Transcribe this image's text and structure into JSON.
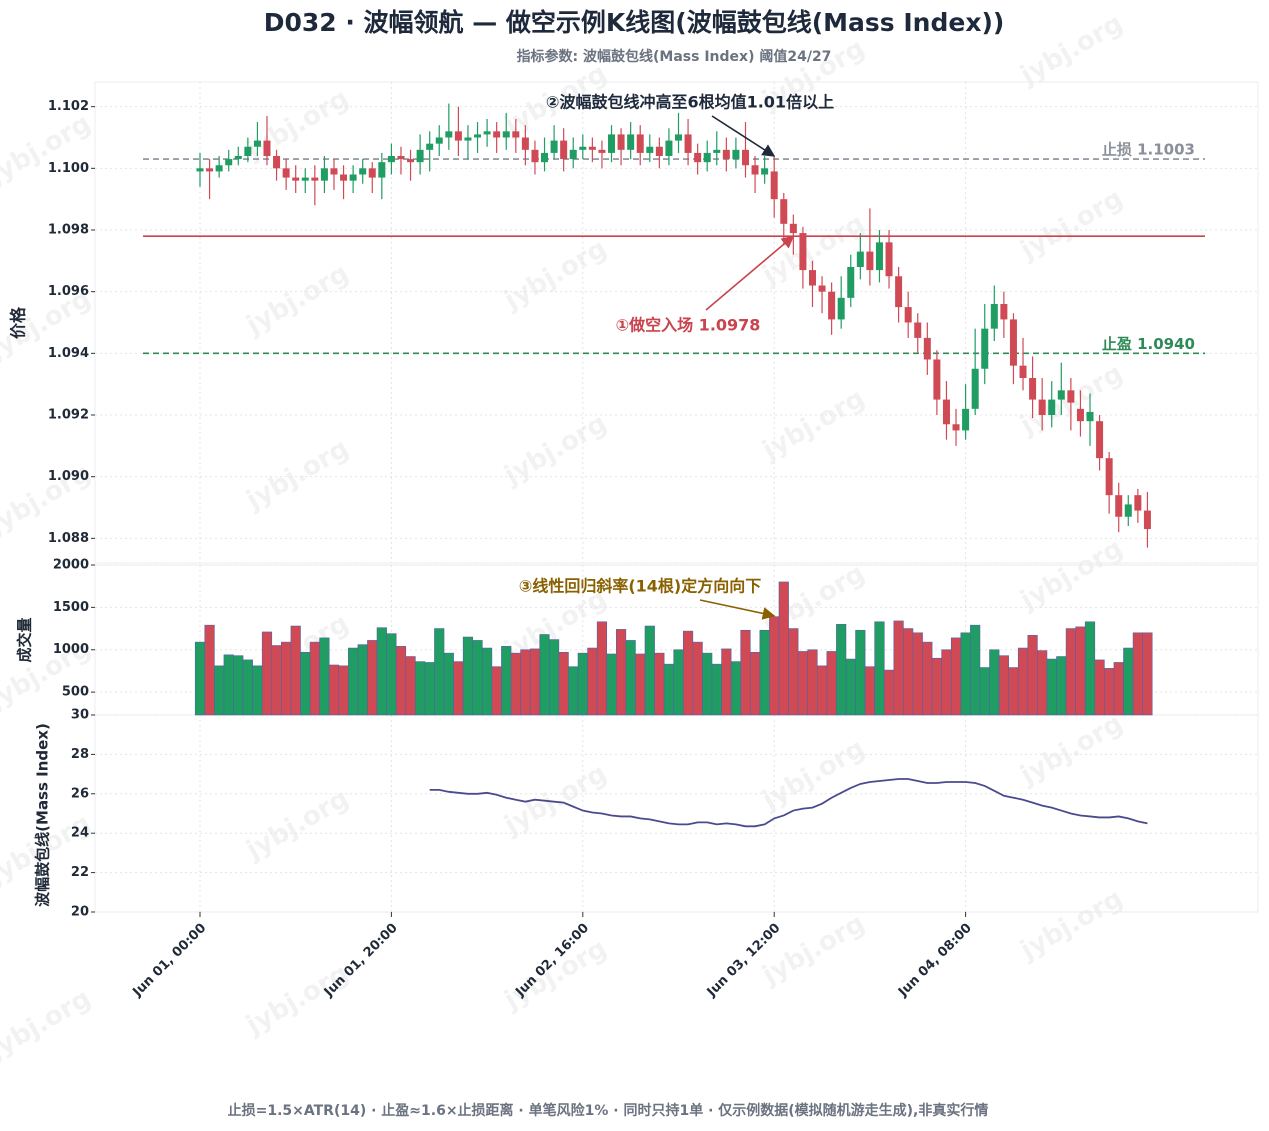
{
  "chart_data": [
    {
      "type": "candlestick",
      "title": "D032 · 波幅领航 — 做空示例K线图(波幅鼓包线(Mass Index))",
      "subtitle": "指标参数: 波幅鼓包线(Mass Index) 阈值24/27",
      "footnote": "止损=1.5×ATR(14) · 止盈≈1.6×止损距离 · 单笔风险1% · 同时只持1单 · 仅示例数据(模拟随机游走生成),非真实行情",
      "watermark": "jybj.org",
      "y_label": "价格",
      "up_color": "#1f9d63",
      "down_color": "#d04a55",
      "x": [
        "Jun 01, 00:00",
        "Jun 01, 01:00",
        "Jun 01, 02:00",
        "Jun 01, 03:00",
        "Jun 01, 04:00",
        "Jun 01, 05:00",
        "Jun 01, 06:00",
        "Jun 01, 07:00",
        "Jun 01, 08:00",
        "Jun 01, 09:00",
        "Jun 01, 10:00",
        "Jun 01, 11:00",
        "Jun 01, 12:00",
        "Jun 01, 13:00",
        "Jun 01, 14:00",
        "Jun 01, 15:00",
        "Jun 01, 16:00",
        "Jun 01, 17:00",
        "Jun 01, 18:00",
        "Jun 01, 19:00",
        "Jun 01, 20:00",
        "Jun 01, 21:00",
        "Jun 01, 22:00",
        "Jun 01, 23:00",
        "Jun 02, 00:00",
        "Jun 02, 01:00",
        "Jun 02, 02:00",
        "Jun 02, 03:00",
        "Jun 02, 04:00",
        "Jun 02, 05:00",
        "Jun 02, 06:00",
        "Jun 02, 07:00",
        "Jun 02, 08:00",
        "Jun 02, 09:00",
        "Jun 02, 10:00",
        "Jun 02, 11:00",
        "Jun 02, 12:00",
        "Jun 02, 13:00",
        "Jun 02, 14:00",
        "Jun 02, 15:00",
        "Jun 02, 16:00",
        "Jun 02, 17:00",
        "Jun 02, 18:00",
        "Jun 02, 19:00",
        "Jun 02, 20:00",
        "Jun 02, 21:00",
        "Jun 02, 22:00",
        "Jun 02, 23:00",
        "Jun 03, 00:00",
        "Jun 03, 01:00",
        "Jun 03, 02:00",
        "Jun 03, 03:00",
        "Jun 03, 04:00",
        "Jun 03, 05:00",
        "Jun 03, 06:00",
        "Jun 03, 07:00",
        "Jun 03, 08:00",
        "Jun 03, 09:00",
        "Jun 03, 10:00",
        "Jun 03, 11:00",
        "Jun 03, 12:00",
        "Jun 03, 13:00",
        "Jun 03, 14:00",
        "Jun 03, 15:00",
        "Jun 03, 16:00",
        "Jun 03, 17:00",
        "Jun 03, 18:00",
        "Jun 03, 19:00",
        "Jun 03, 20:00",
        "Jun 03, 21:00",
        "Jun 03, 22:00",
        "Jun 03, 23:00",
        "Jun 04, 00:00",
        "Jun 04, 01:00",
        "Jun 04, 02:00",
        "Jun 04, 03:00",
        "Jun 04, 04:00",
        "Jun 04, 05:00",
        "Jun 04, 06:00",
        "Jun 04, 07:00",
        "Jun 04, 08:00",
        "Jun 04, 09:00",
        "Jun 04, 10:00",
        "Jun 04, 11:00",
        "Jun 04, 12:00",
        "Jun 04, 13:00",
        "Jun 04, 14:00",
        "Jun 04, 15:00",
        "Jun 04, 16:00",
        "Jun 04, 17:00",
        "Jun 04, 18:00",
        "Jun 04, 19:00",
        "Jun 04, 20:00",
        "Jun 04, 21:00",
        "Jun 04, 22:00",
        "Jun 04, 23:00",
        "Jun 05, 00:00",
        "Jun 05, 01:00",
        "Jun 05, 02:00",
        "Jun 05, 03:00"
      ],
      "xticks": [
        "Jun 01, 00:00",
        "Jun 01, 20:00",
        "Jun 02, 16:00",
        "Jun 03, 12:00",
        "Jun 04, 08:00"
      ],
      "open": [
        1.0999,
        1.1,
        1.0999,
        1.1001,
        1.1003,
        1.1004,
        1.1007,
        1.1009,
        1.1004,
        1.1,
        1.0997,
        1.0996,
        1.0997,
        1.0996,
        1.1,
        1.0998,
        1.0996,
        1.0998,
        1.1,
        1.0997,
        1.1002,
        1.1004,
        1.1003,
        1.1002,
        1.1006,
        1.1008,
        1.101,
        1.1012,
        1.1009,
        1.101,
        1.1011,
        1.1012,
        1.101,
        1.1012,
        1.101,
        1.1006,
        1.1002,
        1.1005,
        1.1009,
        1.1003,
        1.1006,
        1.1007,
        1.1006,
        1.1005,
        1.1011,
        1.1006,
        1.1011,
        1.1005,
        1.1007,
        1.1004,
        1.1009,
        1.1011,
        1.1005,
        1.1002,
        1.1005,
        1.1006,
        1.1003,
        1.1006,
        1.1001,
        1.0998,
        1.0999,
        1.099,
        1.0982,
        1.0979,
        1.0967,
        1.0962,
        1.096,
        1.0951,
        1.0958,
        1.0968,
        1.0973,
        1.0967,
        1.0976,
        1.0965,
        1.0955,
        1.095,
        1.0945,
        1.0938,
        1.0925,
        1.0917,
        1.0915,
        1.0922,
        1.0935,
        1.0948,
        1.0956,
        1.0951,
        1.0936,
        1.0932,
        1.0925,
        1.092,
        1.0925,
        1.0928,
        1.0922,
        1.0918,
        1.0918,
        1.0906,
        1.0894,
        1.0887,
        1.0894,
        1.0889
      ],
      "high": [
        1.1005,
        1.1003,
        1.1004,
        1.1006,
        1.1007,
        1.101,
        1.1015,
        1.1017,
        1.1006,
        1.1003,
        1.1001,
        1.1,
        1.1001,
        1.1004,
        1.1003,
        1.1001,
        1.1001,
        1.1003,
        1.1002,
        1.1005,
        1.1008,
        1.1007,
        1.1006,
        1.1011,
        1.1012,
        1.1014,
        1.1021,
        1.102,
        1.1014,
        1.1015,
        1.1016,
        1.1015,
        1.1018,
        1.1016,
        1.1014,
        1.1009,
        1.101,
        1.1014,
        1.1013,
        1.101,
        1.1011,
        1.101,
        1.1009,
        1.1014,
        1.1013,
        1.1015,
        1.1014,
        1.1011,
        1.101,
        1.1013,
        1.1018,
        1.1016,
        1.1008,
        1.1009,
        1.1012,
        1.101,
        1.101,
        1.1015,
        1.1004,
        1.1004,
        1.1004,
        1.0992,
        1.0985,
        1.0981,
        1.097,
        1.0965,
        1.0963,
        1.0965,
        1.0972,
        1.0979,
        1.0987,
        1.098,
        1.098,
        1.0968,
        1.096,
        1.0953,
        1.095,
        1.0941,
        1.0931,
        1.0922,
        1.093,
        1.0948,
        1.0956,
        1.0962,
        1.096,
        1.0953,
        1.0945,
        1.0939,
        1.0932,
        1.0931,
        1.0937,
        1.0932,
        1.0928,
        1.0927,
        1.092,
        1.0908,
        1.0898,
        1.0894,
        1.0896,
        1.0895
      ],
      "low": [
        1.0994,
        1.099,
        1.0997,
        1.0999,
        1.1001,
        1.1002,
        1.1004,
        1.1001,
        1.0996,
        1.0993,
        1.0992,
        1.0992,
        1.0988,
        1.0992,
        1.0993,
        1.099,
        1.0992,
        1.0995,
        1.0992,
        1.099,
        1.0998,
        1.0998,
        1.0996,
        1.0998,
        1.0999,
        1.1004,
        1.1006,
        1.1004,
        1.1003,
        1.1005,
        1.1007,
        1.1005,
        1.1006,
        1.1005,
        1.1001,
        1.0998,
        1.0999,
        1.1003,
        1.0999,
        1.1,
        1.1003,
        1.1002,
        1.1,
        1.1002,
        1.1001,
        1.1003,
        1.1001,
        1.1002,
        1.1,
        1.1001,
        1.1005,
        1.1001,
        1.0998,
        1.0999,
        1.1001,
        1.0999,
        1.1,
        1.0997,
        1.0992,
        1.0995,
        1.0984,
        1.0975,
        1.0972,
        1.0961,
        1.0955,
        1.0953,
        1.0946,
        1.0948,
        1.0955,
        1.0964,
        1.0962,
        1.0963,
        1.0961,
        1.095,
        1.0945,
        1.094,
        1.0933,
        1.092,
        1.0912,
        1.091,
        1.0912,
        1.092,
        1.093,
        1.0944,
        1.0945,
        1.093,
        1.0928,
        1.0919,
        1.0915,
        1.0916,
        1.092,
        1.0915,
        1.0913,
        1.091,
        1.0902,
        1.0888,
        1.0882,
        1.0884,
        1.0885,
        1.0877
      ],
      "close": [
        1.1,
        1.0999,
        1.1001,
        1.1003,
        1.1004,
        1.1007,
        1.1009,
        1.1004,
        1.1,
        1.0997,
        1.0996,
        1.0997,
        1.0996,
        1.1,
        1.0998,
        1.0996,
        1.0998,
        1.1,
        1.0997,
        1.1002,
        1.1004,
        1.1003,
        1.1002,
        1.1006,
        1.1008,
        1.101,
        1.1012,
        1.1009,
        1.101,
        1.1011,
        1.1012,
        1.101,
        1.1012,
        1.101,
        1.1006,
        1.1002,
        1.1005,
        1.1009,
        1.1003,
        1.1006,
        1.1007,
        1.1006,
        1.1005,
        1.1011,
        1.1006,
        1.1011,
        1.1005,
        1.1007,
        1.1004,
        1.1009,
        1.1011,
        1.1005,
        1.1002,
        1.1005,
        1.1006,
        1.1003,
        1.1006,
        1.1001,
        1.0998,
        1.1,
        1.099,
        1.0982,
        1.0979,
        1.0967,
        1.0962,
        1.096,
        1.0951,
        1.0958,
        1.0968,
        1.0973,
        1.0967,
        1.0976,
        1.0965,
        1.0955,
        1.095,
        1.0945,
        1.0938,
        1.0925,
        1.0917,
        1.0915,
        1.0922,
        1.0935,
        1.0948,
        1.0956,
        1.0951,
        1.0936,
        1.0932,
        1.0925,
        1.092,
        1.0925,
        1.0928,
        1.0924,
        1.0918,
        1.0921,
        1.0906,
        1.0894,
        1.0887,
        1.0891,
        1.0889,
        1.0883
      ],
      "ylim": [
        1.0872,
        1.1028
      ],
      "yticks": [
        1.088,
        {
          "value": 1.09,
          "label": "1.090"
        },
        1.092,
        1.094,
        1.096,
        1.098,
        {
          "value": 1.1,
          "label": "1.100"
        },
        1.102
      ],
      "grid": true,
      "hlines": [
        {
          "value": 1.1003,
          "label": "止损 1.1003",
          "color": "#8a8f99",
          "style": "dashed"
        },
        {
          "value": 1.0978,
          "color": "#c9444d",
          "style": "solid"
        },
        {
          "value": 1.094,
          "label": "止盈 1.0940",
          "color": "#2e8b57",
          "style": "dashed"
        }
      ],
      "annotations": [
        {
          "text": "②波幅鼓包线冲高至6根均值1.01倍以上",
          "x": "Jun 03, 12:00",
          "y": 1.1004,
          "color": "#1e293b"
        },
        {
          "text": "①做空入场 1.0978",
          "x": "Jun 03, 14:00",
          "y": 1.0978,
          "color": "#c9444d"
        }
      ]
    },
    {
      "type": "bar",
      "y_label": "成交量",
      "edge_color": "#5561a8",
      "values": [
        1090,
        1290,
        810,
        940,
        930,
        880,
        810,
        1210,
        1050,
        1090,
        1280,
        970,
        1090,
        1140,
        820,
        810,
        1020,
        1060,
        1110,
        1260,
        1190,
        1040,
        920,
        860,
        850,
        1250,
        960,
        860,
        1150,
        1110,
        1020,
        800,
        1040,
        960,
        1000,
        1010,
        1180,
        1120,
        970,
        800,
        960,
        1020,
        1330,
        950,
        1240,
        1110,
        950,
        1280,
        960,
        830,
        1000,
        1220,
        1090,
        960,
        830,
        1010,
        860,
        1230,
        970,
        1230,
        1390,
        1800,
        1250,
        980,
        1000,
        810,
        980,
        1300,
        890,
        1230,
        800,
        1330,
        760,
        1340,
        1250,
        1200,
        1090,
        900,
        1000,
        1140,
        1200,
        1290,
        790,
        1000,
        930,
        790,
        1020,
        1170,
        990,
        890,
        920,
        1250,
        1270,
        1330,
        880,
        780,
        850,
        1020,
        1200,
        1200
      ],
      "ylim": [
        230,
        2000
      ],
      "yticks": [
        500,
        1000,
        1500,
        2000
      ],
      "grid": true,
      "annotations": [
        {
          "text": "③线性回归斜率(14根)定方向向下",
          "x": "Jun 03, 12:00",
          "y": 1400,
          "color": "#8a6100"
        }
      ]
    },
    {
      "type": "line",
      "y_label": "波幅鼓包线(Mass Index)",
      "color": "#4b4a8f",
      "values": [
        null,
        null,
        null,
        null,
        null,
        null,
        null,
        null,
        null,
        null,
        null,
        null,
        null,
        null,
        null,
        null,
        null,
        null,
        null,
        null,
        null,
        null,
        null,
        null,
        26.2,
        26.2,
        26.1,
        26.05,
        26.0,
        26.0,
        26.05,
        25.95,
        25.8,
        25.7,
        25.6,
        25.7,
        25.65,
        25.6,
        25.55,
        25.35,
        25.15,
        25.05,
        25.0,
        24.9,
        24.85,
        24.85,
        24.75,
        24.7,
        24.6,
        24.5,
        24.45,
        24.45,
        24.55,
        24.55,
        24.45,
        24.5,
        24.45,
        24.35,
        24.35,
        24.45,
        24.75,
        24.9,
        25.15,
        25.25,
        25.3,
        25.5,
        25.8,
        26.05,
        26.3,
        26.5,
        26.6,
        26.65,
        26.7,
        26.75,
        26.75,
        26.65,
        26.55,
        26.55,
        26.6,
        26.6,
        26.6,
        26.55,
        26.4,
        26.15,
        25.9,
        25.8,
        25.7,
        25.55,
        25.4,
        25.3,
        25.15,
        25.0,
        24.9,
        24.85,
        24.8,
        24.8,
        24.85,
        24.75,
        24.6,
        24.5
      ],
      "ylim": [
        20,
        30
      ],
      "yticks": [
        20,
        22,
        24,
        26,
        28,
        30
      ],
      "grid": true
    }
  ]
}
